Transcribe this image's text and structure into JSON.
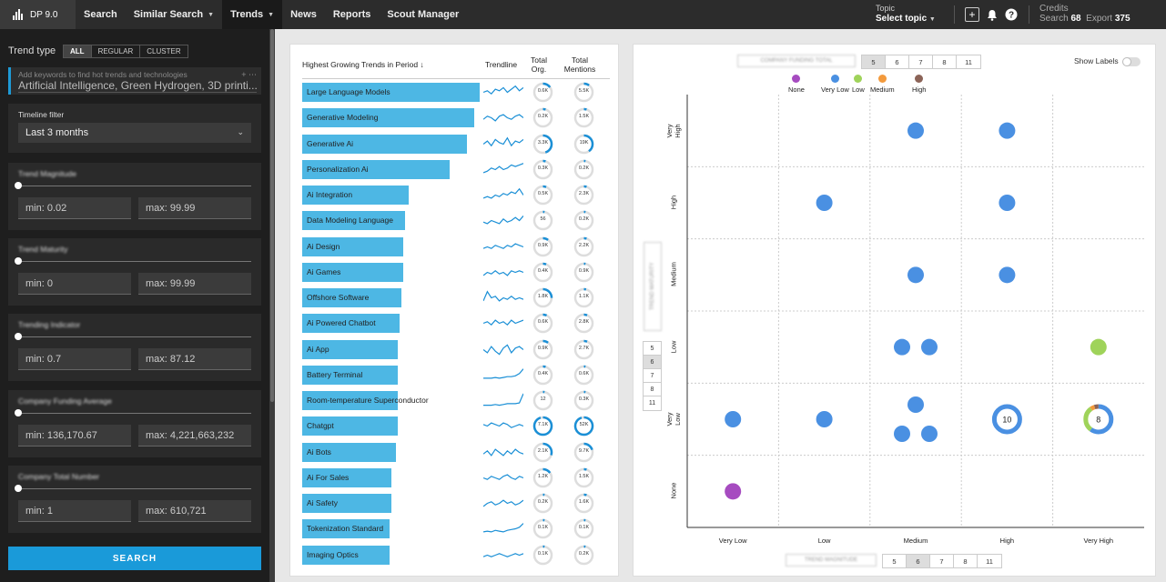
{
  "app": {
    "name": "DP 9.0"
  },
  "nav": [
    {
      "label": "Search",
      "caret": false
    },
    {
      "label": "Similar Search",
      "caret": true
    },
    {
      "label": "Trends",
      "caret": true,
      "active": true
    },
    {
      "label": "News",
      "caret": false
    },
    {
      "label": "Reports",
      "caret": false
    },
    {
      "label": "Scout Manager",
      "caret": false
    }
  ],
  "topic": {
    "label": "Topic",
    "value": "Select topic"
  },
  "credits": {
    "label": "Credits",
    "search_label": "Search",
    "search_value": "68",
    "export_label": "Export",
    "export_value": "375"
  },
  "sidebar": {
    "trend_type_label": "Trend type",
    "trend_type_options": [
      "ALL",
      "REGULAR",
      "CLUSTER"
    ],
    "trend_type_selected": "ALL",
    "keywords_placeholder": "Add keywords to find hot trends and technologies",
    "keywords_value": "Artificial Intelligence, Green Hydrogen, 3D printi...",
    "timeline_label": "Timeline filter",
    "timeline_value": "Last 3 months",
    "filters": [
      {
        "label": "Trend Magnitude",
        "min": "min: 0.02",
        "max": "max: 99.99"
      },
      {
        "label": "Trend Maturity",
        "min": "min: 0",
        "max": "max: 99.99"
      },
      {
        "label": "Trending Indicator",
        "min": "min: 0.7",
        "max": "max: 87.12"
      },
      {
        "label": "Company Funding Average",
        "min": "min: 136,170.67",
        "max": "max: 4,221,663,232"
      },
      {
        "label": "Company Total Number",
        "min": "min: 1",
        "max": "max: 610,721"
      }
    ],
    "search_button": "SEARCH"
  },
  "list": {
    "header_title": "Highest Growing Trends in Period",
    "header_trendline": "Trendline",
    "header_org": "Total\nOrg.",
    "header_mentions": "Total\nMentions",
    "rows": [
      {
        "name": "Large Language Models",
        "growth": 1.0,
        "org": "0.6K",
        "org_frac": 0.15,
        "mentions": "5.5K",
        "men_frac": 0.1,
        "trend": [
          0.5,
          0.6,
          0.4,
          0.7,
          0.6,
          0.8,
          0.5,
          0.7,
          0.9,
          0.6,
          0.8
        ]
      },
      {
        "name": "Generative Modeling",
        "growth": 0.97,
        "org": "0.2K",
        "org_frac": 0.05,
        "mentions": "1.5K",
        "men_frac": 0.05,
        "trend": [
          0.4,
          0.6,
          0.5,
          0.3,
          0.6,
          0.7,
          0.5,
          0.4,
          0.6,
          0.7,
          0.5
        ]
      },
      {
        "name": "Generative Ai",
        "growth": 0.93,
        "org": "3.3K",
        "org_frac": 0.45,
        "mentions": "19K",
        "men_frac": 0.4,
        "trend": [
          0.5,
          0.7,
          0.4,
          0.8,
          0.6,
          0.5,
          0.9,
          0.4,
          0.7,
          0.6,
          0.8
        ]
      },
      {
        "name": "Personalization Ai",
        "growth": 0.83,
        "org": "0.3K",
        "org_frac": 0.05,
        "mentions": "0.2K",
        "men_frac": 0.03,
        "trend": [
          0.3,
          0.4,
          0.6,
          0.5,
          0.7,
          0.5,
          0.6,
          0.8,
          0.7,
          0.8,
          0.9
        ]
      },
      {
        "name": "Ai Integration",
        "growth": 0.6,
        "org": "0.5K",
        "org_frac": 0.06,
        "mentions": "2.3K",
        "men_frac": 0.05,
        "trend": [
          0.3,
          0.4,
          0.3,
          0.5,
          0.4,
          0.6,
          0.5,
          0.7,
          0.6,
          0.9,
          0.5
        ]
      },
      {
        "name": "Data Modeling Language",
        "growth": 0.58,
        "org": "56",
        "org_frac": 0.0,
        "mentions": "0.2K",
        "men_frac": 0.02,
        "trend": [
          0.4,
          0.3,
          0.5,
          0.4,
          0.3,
          0.6,
          0.4,
          0.5,
          0.7,
          0.5,
          0.8
        ]
      },
      {
        "name": "Ai Design",
        "growth": 0.57,
        "org": "0.9K",
        "org_frac": 0.1,
        "mentions": "2.2K",
        "men_frac": 0.05,
        "trend": [
          0.4,
          0.5,
          0.4,
          0.6,
          0.5,
          0.4,
          0.6,
          0.5,
          0.7,
          0.6,
          0.5
        ]
      },
      {
        "name": "Ai Games",
        "growth": 0.57,
        "org": "0.4K",
        "org_frac": 0.06,
        "mentions": "0.9K",
        "men_frac": 0.03,
        "trend": [
          0.3,
          0.5,
          0.4,
          0.6,
          0.4,
          0.5,
          0.3,
          0.6,
          0.5,
          0.6,
          0.5
        ]
      },
      {
        "name": "Offshore Software",
        "growth": 0.56,
        "org": "1.8K",
        "org_frac": 0.25,
        "mentions": "1.1K",
        "men_frac": 0.04,
        "trend": [
          0.3,
          0.9,
          0.5,
          0.6,
          0.3,
          0.5,
          0.4,
          0.6,
          0.4,
          0.5,
          0.4
        ]
      },
      {
        "name": "Ai Powered Chatbot",
        "growth": 0.55,
        "org": "0.6K",
        "org_frac": 0.07,
        "mentions": "2.8K",
        "men_frac": 0.06,
        "trend": [
          0.5,
          0.6,
          0.4,
          0.7,
          0.5,
          0.6,
          0.4,
          0.7,
          0.5,
          0.6,
          0.7
        ]
      },
      {
        "name": "Ai App",
        "growth": 0.54,
        "org": "0.9K",
        "org_frac": 0.1,
        "mentions": "2.7K",
        "men_frac": 0.06,
        "trend": [
          0.5,
          0.3,
          0.7,
          0.4,
          0.2,
          0.6,
          0.8,
          0.3,
          0.6,
          0.7,
          0.5
        ]
      },
      {
        "name": "Battery Terminal",
        "growth": 0.54,
        "org": "0.4K",
        "org_frac": 0.05,
        "mentions": "0.6K",
        "men_frac": 0.03,
        "trend": [
          0.3,
          0.3,
          0.3,
          0.35,
          0.3,
          0.35,
          0.4,
          0.4,
          0.45,
          0.6,
          0.9
        ]
      },
      {
        "name": "Room-temperature Superconductor",
        "growth": 0.54,
        "org": "12",
        "org_frac": 0.0,
        "mentions": "0.3K",
        "men_frac": 0.02,
        "trend": [
          0.2,
          0.2,
          0.2,
          0.25,
          0.2,
          0.25,
          0.3,
          0.3,
          0.3,
          0.35,
          0.95
        ]
      },
      {
        "name": "Chatgpt",
        "growth": 0.54,
        "org": "7.1K",
        "org_frac": 0.95,
        "mentions": "52K",
        "men_frac": 0.95,
        "trend": [
          0.6,
          0.5,
          0.7,
          0.6,
          0.5,
          0.7,
          0.6,
          0.4,
          0.5,
          0.6,
          0.5
        ]
      },
      {
        "name": "Ai Bots",
        "growth": 0.53,
        "org": "2.1K",
        "org_frac": 0.3,
        "mentions": "9.7K",
        "men_frac": 0.2,
        "trend": [
          0.4,
          0.6,
          0.3,
          0.7,
          0.5,
          0.3,
          0.6,
          0.4,
          0.7,
          0.5,
          0.4
        ]
      },
      {
        "name": "Ai For Sales",
        "growth": 0.5,
        "org": "1.2K",
        "org_frac": 0.15,
        "mentions": "1.5K",
        "men_frac": 0.05,
        "trend": [
          0.5,
          0.4,
          0.6,
          0.5,
          0.4,
          0.6,
          0.7,
          0.5,
          0.4,
          0.6,
          0.5
        ]
      },
      {
        "name": "Ai Safety",
        "growth": 0.5,
        "org": "0.2K",
        "org_frac": 0.03,
        "mentions": "1.6K",
        "men_frac": 0.05,
        "trend": [
          0.3,
          0.5,
          0.6,
          0.4,
          0.5,
          0.7,
          0.5,
          0.6,
          0.4,
          0.5,
          0.7
        ]
      },
      {
        "name": "Tokenization Standard",
        "growth": 0.49,
        "org": "0.1K",
        "org_frac": 0.02,
        "mentions": "0.1K",
        "men_frac": 0.02,
        "trend": [
          0.3,
          0.35,
          0.3,
          0.4,
          0.35,
          0.3,
          0.4,
          0.45,
          0.5,
          0.6,
          0.85
        ]
      },
      {
        "name": "Imaging Optics",
        "growth": 0.49,
        "org": "0.1K",
        "org_frac": 0.02,
        "mentions": "0.2K",
        "men_frac": 0.02,
        "trend": [
          0.4,
          0.5,
          0.4,
          0.5,
          0.6,
          0.5,
          0.4,
          0.5,
          0.6,
          0.5,
          0.6
        ]
      }
    ]
  },
  "matrix": {
    "top_selector_label": "COMPANY FUNDING TOTAL",
    "top_options": [
      "5",
      "6",
      "7",
      "8",
      "11"
    ],
    "top_selected": "5",
    "show_labels": "Show Labels",
    "y_selector_label": "TREND MATURITY",
    "y_options": [
      "5",
      "6",
      "7",
      "8",
      "11"
    ],
    "y_selected": "6",
    "x_selector_label": "TREND MAGNITUDE",
    "x_options": [
      "5",
      "6",
      "7",
      "8",
      "11"
    ],
    "x_selected": "6",
    "legend": [
      {
        "label": "None",
        "color": "#a64bc0"
      },
      {
        "label": "Very Low",
        "color": "#4a90e2"
      },
      {
        "label": "Low",
        "color": "#9fd35a"
      },
      {
        "label": "Medium",
        "color": "#f39a3c"
      },
      {
        "label": "High",
        "color": "#8b6357"
      }
    ],
    "x_ticks": [
      "Very Low",
      "Low",
      "Medium",
      "High",
      "Very High"
    ],
    "y_ticks": [
      "Very High",
      "High",
      "Medium",
      "Low",
      "Very Low",
      "None"
    ],
    "points": [
      {
        "x": "Medium",
        "y": "Very High",
        "color": "#4a90e2"
      },
      {
        "x": "High",
        "y": "Very High",
        "color": "#4a90e2"
      },
      {
        "x": "Low",
        "y": "High",
        "color": "#4a90e2"
      },
      {
        "x": "High",
        "y": "High",
        "color": "#4a90e2"
      },
      {
        "x": "Medium",
        "y": "Medium",
        "color": "#4a90e2"
      },
      {
        "x": "High",
        "y": "Medium",
        "color": "#4a90e2"
      },
      {
        "x": "Medium",
        "y": "Low",
        "color": "#4a90e2"
      },
      {
        "x": "Medium",
        "y": "Low",
        "color": "#4a90e2"
      },
      {
        "x": "Very High",
        "y": "Low",
        "color": "#9fd35a"
      },
      {
        "x": "Very Low",
        "y": "Very Low",
        "color": "#4a90e2"
      },
      {
        "x": "Low",
        "y": "Very Low",
        "color": "#4a90e2"
      },
      {
        "x": "Medium",
        "y": "Very Low",
        "color": "#4a90e2"
      },
      {
        "x": "Medium",
        "y": "Very Low",
        "color": "#4a90e2"
      },
      {
        "x": "Medium",
        "y": "Very Low",
        "color": "#4a90e2"
      },
      {
        "x": "Very Low",
        "y": "None",
        "color": "#a64bc0"
      }
    ],
    "clusters": [
      {
        "x": "High",
        "y": "Very Low",
        "count": "10",
        "segments": [
          {
            "color": "#4a90e2",
            "frac": 1.0
          }
        ]
      },
      {
        "x": "Very High",
        "y": "Very Low",
        "count": "8",
        "segments": [
          {
            "color": "#4a90e2",
            "frac": 0.6
          },
          {
            "color": "#9fd35a",
            "frac": 0.3
          },
          {
            "color": "#f39a3c",
            "frac": 0.05
          },
          {
            "color": "#8b6357",
            "frac": 0.05
          }
        ]
      }
    ]
  }
}
